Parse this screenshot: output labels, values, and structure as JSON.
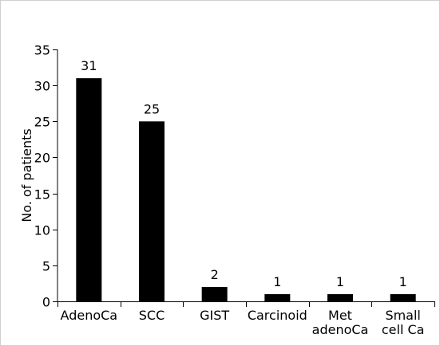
{
  "chart_data": {
    "type": "bar",
    "categories": [
      "AdenoCa",
      "SCC",
      "GIST",
      "Carcinoid",
      "Met adenoCa",
      "Small cell Ca"
    ],
    "category_lines": [
      [
        "AdenoCa"
      ],
      [
        "SCC"
      ],
      [
        "GIST"
      ],
      [
        "Carcinoid"
      ],
      [
        "Met",
        "adenoCa"
      ],
      [
        "Small",
        "cell Ca"
      ]
    ],
    "values": [
      31,
      25,
      2,
      1,
      1,
      1
    ],
    "data_labels": [
      "31",
      "25",
      "2",
      "1",
      "1",
      "1"
    ],
    "title": "",
    "xlabel": "",
    "ylabel": "No. of patients",
    "ylim": [
      0,
      35
    ],
    "yticks": [
      0,
      5,
      10,
      15,
      20,
      25,
      30,
      35
    ],
    "grid": false,
    "legend": "none",
    "bar_color": "#000000"
  }
}
